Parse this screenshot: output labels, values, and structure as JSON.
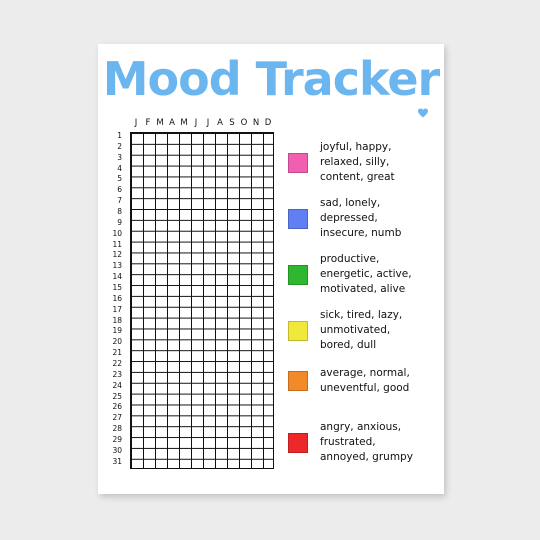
{
  "title": "Mood Tracker",
  "months": [
    "J",
    "F",
    "M",
    "A",
    "M",
    "J",
    "J",
    "A",
    "S",
    "O",
    "N",
    "D"
  ],
  "days": [
    "1",
    "2",
    "3",
    "4",
    "5",
    "6",
    "7",
    "8",
    "9",
    "10",
    "11",
    "12",
    "13",
    "14",
    "15",
    "16",
    "17",
    "18",
    "19",
    "20",
    "21",
    "22",
    "23",
    "24",
    "25",
    "26",
    "27",
    "28",
    "29",
    "30",
    "31"
  ],
  "legend": [
    {
      "color": "#f25fb0",
      "text": "joyful, happy,\nrelaxed, silly,\ncontent, great"
    },
    {
      "color": "#5f7ff2",
      "text": "sad, lonely,\ndepressed,\ninsecure, numb"
    },
    {
      "color": "#2fb72f",
      "text": "productive,\nenergetic, active,\nmotivated, alive"
    },
    {
      "color": "#f0e93a",
      "text": "sick, tired, lazy,\nunmotivated,\nbored, dull"
    },
    {
      "color": "#f28a2a",
      "text": "average, normal,\nuneventful, good"
    },
    {
      "color": "#ee2828",
      "text": "angry, anxious,\nfrustrated,\nannoyed, grumpy"
    }
  ],
  "colors": {
    "title": "#6cb6ef",
    "heart": "#6cb6ef",
    "grid": "#111111"
  },
  "icons": {
    "heart": "heart-icon"
  }
}
